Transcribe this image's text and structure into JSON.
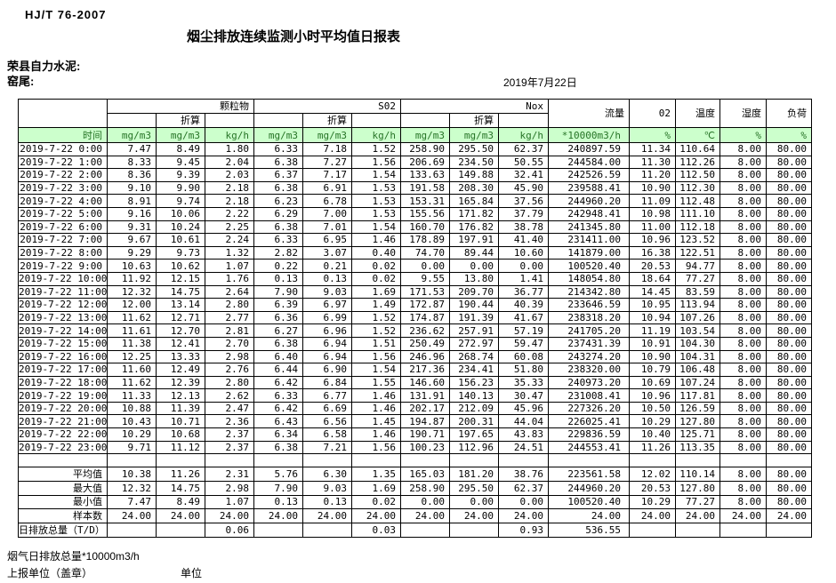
{
  "colors": {
    "header_bg": "#ccffcc",
    "header_fg": "#267326",
    "grid_line": "#000000",
    "page_bg": "#ffffff"
  },
  "meta": {
    "standard_code": "HJ/T  76-2007",
    "title": "烟尘排放连续监测小时平均值日报表",
    "company": "荣县自力水泥:",
    "stack": "窑尾:",
    "date": "2019年7月22日"
  },
  "table": {
    "time_label": "时间",
    "subheader": "折算",
    "groups": {
      "particulate": "颗粒物",
      "so2": "S02",
      "nox": "Nox",
      "flow": "流量",
      "o2": "02",
      "temperature": "温度",
      "humidity": "湿度",
      "load": "负荷"
    },
    "units": [
      "mg/m3",
      "mg/m3",
      "kg/h",
      "mg/m3",
      "mg/m3",
      "kg/h",
      "mg/m3",
      "mg/m3",
      "kg/h",
      "*10000m3/h",
      "%",
      "℃",
      "%",
      "%"
    ],
    "rows": [
      {
        "time": "2019-7-22 0:00",
        "values": [
          "7.47",
          "8.49",
          "1.80",
          "6.33",
          "7.18",
          "1.52",
          "258.90",
          "295.50",
          "62.37",
          "240897.59",
          "11.34",
          "110.64",
          "8.00",
          "80.00"
        ]
      },
      {
        "time": "2019-7-22 1:00",
        "values": [
          "8.33",
          "9.45",
          "2.04",
          "6.38",
          "7.27",
          "1.56",
          "206.69",
          "234.50",
          "50.55",
          "244584.00",
          "11.30",
          "112.26",
          "8.00",
          "80.00"
        ]
      },
      {
        "time": "2019-7-22 2:00",
        "values": [
          "8.36",
          "9.39",
          "2.03",
          "6.37",
          "7.17",
          "1.54",
          "133.63",
          "149.88",
          "32.41",
          "242526.59",
          "11.20",
          "112.50",
          "8.00",
          "80.00"
        ]
      },
      {
        "time": "2019-7-22 3:00",
        "values": [
          "9.10",
          "9.90",
          "2.18",
          "6.38",
          "6.91",
          "1.53",
          "191.58",
          "208.30",
          "45.90",
          "239588.41",
          "10.90",
          "112.30",
          "8.00",
          "80.00"
        ]
      },
      {
        "time": "2019-7-22 4:00",
        "values": [
          "8.91",
          "9.74",
          "2.18",
          "6.23",
          "6.78",
          "1.53",
          "153.31",
          "165.84",
          "37.56",
          "244960.20",
          "11.09",
          "112.48",
          "8.00",
          "80.00"
        ]
      },
      {
        "time": "2019-7-22 5:00",
        "values": [
          "9.16",
          "10.06",
          "2.22",
          "6.29",
          "7.00",
          "1.53",
          "155.56",
          "171.82",
          "37.79",
          "242948.41",
          "10.98",
          "111.10",
          "8.00",
          "80.00"
        ]
      },
      {
        "time": "2019-7-22 6:00",
        "values": [
          "9.31",
          "10.24",
          "2.25",
          "6.38",
          "7.01",
          "1.54",
          "160.70",
          "176.82",
          "38.78",
          "241345.80",
          "11.00",
          "112.18",
          "8.00",
          "80.00"
        ]
      },
      {
        "time": "2019-7-22 7:00",
        "values": [
          "9.67",
          "10.61",
          "2.24",
          "6.33",
          "6.95",
          "1.46",
          "178.89",
          "197.91",
          "41.40",
          "231411.00",
          "10.96",
          "123.52",
          "8.00",
          "80.00"
        ]
      },
      {
        "time": "2019-7-22 8:00",
        "values": [
          "9.29",
          "9.73",
          "1.32",
          "2.82",
          "3.07",
          "0.40",
          "74.70",
          "89.44",
          "10.60",
          "141879.00",
          "16.38",
          "122.51",
          "8.00",
          "80.00"
        ]
      },
      {
        "time": "2019-7-22 9:00",
        "values": [
          "10.63",
          "10.62",
          "1.07",
          "0.22",
          "0.21",
          "0.02",
          "0.00",
          "0.00",
          "0.00",
          "100520.40",
          "20.53",
          "94.77",
          "8.00",
          "80.00"
        ]
      },
      {
        "time": "2019-7-22 10:00",
        "values": [
          "11.92",
          "12.15",
          "1.76",
          "0.13",
          "0.13",
          "0.02",
          "9.55",
          "13.80",
          "1.41",
          "148054.80",
          "18.64",
          "77.27",
          "8.00",
          "80.00"
        ]
      },
      {
        "time": "2019-7-22 11:00",
        "values": [
          "12.32",
          "14.75",
          "2.64",
          "7.90",
          "9.03",
          "1.69",
          "171.53",
          "209.70",
          "36.77",
          "214342.80",
          "14.45",
          "83.59",
          "8.00",
          "80.00"
        ]
      },
      {
        "time": "2019-7-22 12:00",
        "values": [
          "12.00",
          "13.14",
          "2.80",
          "6.39",
          "6.97",
          "1.49",
          "172.87",
          "190.44",
          "40.39",
          "233646.59",
          "10.95",
          "113.94",
          "8.00",
          "80.00"
        ]
      },
      {
        "time": "2019-7-22 13:00",
        "values": [
          "11.62",
          "12.71",
          "2.77",
          "6.36",
          "6.99",
          "1.52",
          "174.87",
          "191.39",
          "41.67",
          "238318.20",
          "10.94",
          "107.26",
          "8.00",
          "80.00"
        ]
      },
      {
        "time": "2019-7-22 14:00",
        "values": [
          "11.61",
          "12.70",
          "2.81",
          "6.27",
          "6.96",
          "1.52",
          "236.62",
          "257.91",
          "57.19",
          "241705.20",
          "11.19",
          "103.54",
          "8.00",
          "80.00"
        ]
      },
      {
        "time": "2019-7-22 15:00",
        "values": [
          "11.38",
          "12.41",
          "2.70",
          "6.38",
          "6.94",
          "1.51",
          "250.49",
          "272.97",
          "59.47",
          "237431.39",
          "10.91",
          "104.30",
          "8.00",
          "80.00"
        ]
      },
      {
        "time": "2019-7-22 16:00",
        "values": [
          "12.25",
          "13.33",
          "2.98",
          "6.40",
          "6.94",
          "1.56",
          "246.96",
          "268.74",
          "60.08",
          "243274.20",
          "10.90",
          "104.31",
          "8.00",
          "80.00"
        ]
      },
      {
        "time": "2019-7-22 17:00",
        "values": [
          "11.60",
          "12.49",
          "2.76",
          "6.44",
          "6.90",
          "1.54",
          "217.36",
          "234.41",
          "51.80",
          "238320.00",
          "10.79",
          "106.48",
          "8.00",
          "80.00"
        ]
      },
      {
        "time": "2019-7-22 18:00",
        "values": [
          "11.62",
          "12.39",
          "2.80",
          "6.42",
          "6.84",
          "1.55",
          "146.60",
          "156.23",
          "35.33",
          "240973.20",
          "10.69",
          "107.24",
          "8.00",
          "80.00"
        ]
      },
      {
        "time": "2019-7-22 19:00",
        "values": [
          "11.33",
          "12.13",
          "2.62",
          "6.33",
          "6.77",
          "1.46",
          "131.91",
          "140.13",
          "30.47",
          "231008.41",
          "10.96",
          "117.81",
          "8.00",
          "80.00"
        ]
      },
      {
        "time": "2019-7-22 20:00",
        "values": [
          "10.88",
          "11.39",
          "2.47",
          "6.42",
          "6.69",
          "1.46",
          "202.17",
          "212.09",
          "45.96",
          "227326.20",
          "10.50",
          "126.59",
          "8.00",
          "80.00"
        ]
      },
      {
        "time": "2019-7-22 21:00",
        "values": [
          "10.43",
          "10.71",
          "2.36",
          "6.43",
          "6.56",
          "1.45",
          "194.87",
          "200.31",
          "44.04",
          "226025.41",
          "10.29",
          "127.80",
          "8.00",
          "80.00"
        ]
      },
      {
        "time": "2019-7-22 22:00",
        "values": [
          "10.29",
          "10.68",
          "2.37",
          "6.34",
          "6.58",
          "1.46",
          "190.71",
          "197.65",
          "43.83",
          "229836.59",
          "10.40",
          "125.71",
          "8.00",
          "80.00"
        ]
      },
      {
        "time": "2019-7-22 23:00",
        "values": [
          "9.71",
          "11.12",
          "2.37",
          "6.38",
          "7.21",
          "1.56",
          "100.23",
          "112.96",
          "24.51",
          "244553.41",
          "11.26",
          "113.35",
          "8.00",
          "80.00"
        ]
      }
    ],
    "summary": [
      {
        "label": "平均值",
        "align": "right",
        "values": [
          "10.38",
          "11.26",
          "2.31",
          "5.76",
          "6.30",
          "1.35",
          "165.03",
          "181.20",
          "38.76",
          "223561.58",
          "12.02",
          "110.14",
          "8.00",
          "80.00"
        ]
      },
      {
        "label": "最大值",
        "align": "right",
        "values": [
          "12.32",
          "14.75",
          "2.98",
          "7.90",
          "9.03",
          "1.69",
          "258.90",
          "295.50",
          "62.37",
          "244960.20",
          "20.53",
          "127.80",
          "8.00",
          "80.00"
        ]
      },
      {
        "label": "最小值",
        "align": "right",
        "values": [
          "7.47",
          "8.49",
          "1.07",
          "0.13",
          "0.13",
          "0.02",
          "0.00",
          "0.00",
          "0.00",
          "100520.40",
          "10.29",
          "77.27",
          "8.00",
          "80.00"
        ]
      },
      {
        "label": "样本数",
        "align": "right",
        "values": [
          "24.00",
          "24.00",
          "24.00",
          "24.00",
          "24.00",
          "24.00",
          "24.00",
          "24.00",
          "24.00",
          "24.00",
          "24.00",
          "24.00",
          "24.00",
          "24.00"
        ]
      },
      {
        "label": "日排放总量（T/D）",
        "align": "left",
        "values": [
          "",
          "",
          "0.06",
          "",
          "",
          "0.03",
          "",
          "",
          "0.93",
          "536.55",
          "",
          "",
          "",
          ""
        ]
      }
    ]
  },
  "footer": {
    "flow_note": "烟气日排放总量*10000m3/h",
    "report_unit": "上报单位（盖章）",
    "unit": "单位"
  }
}
